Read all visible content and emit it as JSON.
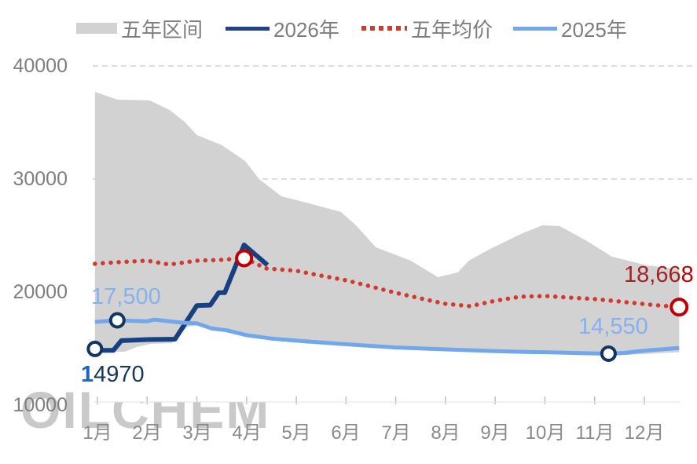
{
  "watermark": "OILCHEM",
  "legend": [
    {
      "label": "五年区间",
      "type": "band",
      "color": "#d2d2d2"
    },
    {
      "label": "2026年",
      "type": "line",
      "color": "#1e4388"
    },
    {
      "label": "五年均价",
      "type": "dotted",
      "color": "#d23a2e"
    },
    {
      "label": "2025年",
      "type": "line",
      "color": "#73a7ec"
    }
  ],
  "chart_data": {
    "type": "line",
    "title": "",
    "x_axis": {
      "tick_labels": [
        "1月",
        "2月",
        "3月",
        "4月",
        "5月",
        "6月",
        "7月",
        "8月",
        "9月",
        "10月",
        "11月",
        "12月"
      ],
      "range": [
        0.95,
        12.7
      ]
    },
    "y_axis": {
      "range": [
        10000,
        40000
      ],
      "tick_labels": [
        "40000",
        "30000",
        "20000",
        "10000"
      ],
      "tick_values": [
        40000,
        30000,
        20000,
        10000
      ],
      "gridline_values": [
        40000,
        30000
      ],
      "grid": "dashed"
    },
    "band": {
      "name": "五年区间",
      "color": "#d2d2d2",
      "upper": [
        [
          0.95,
          37710
        ],
        [
          1.4,
          37020
        ],
        [
          2.05,
          36950
        ],
        [
          2.45,
          36110
        ],
        [
          2.75,
          35070
        ],
        [
          3.0,
          33890
        ],
        [
          3.5,
          32990
        ],
        [
          3.97,
          31600
        ],
        [
          4.25,
          30000
        ],
        [
          4.7,
          28470
        ],
        [
          5.2,
          27920
        ],
        [
          5.9,
          27080
        ],
        [
          6.2,
          25900
        ],
        [
          6.6,
          23960
        ],
        [
          7.3,
          22780
        ],
        [
          7.85,
          21320
        ],
        [
          8.25,
          21740
        ],
        [
          8.47,
          22780
        ],
        [
          8.9,
          23820
        ],
        [
          9.55,
          25210
        ],
        [
          9.95,
          25900
        ],
        [
          10.3,
          25830
        ],
        [
          10.85,
          24510
        ],
        [
          11.35,
          23130
        ],
        [
          12.05,
          22360
        ],
        [
          12.7,
          22020
        ]
      ],
      "lower": [
        [
          0.95,
          14720
        ],
        [
          1.55,
          14720
        ],
        [
          1.8,
          15150
        ],
        [
          2.1,
          15430
        ],
        [
          2.5,
          15480
        ],
        [
          2.8,
          16900
        ],
        [
          3.05,
          17090
        ],
        [
          3.3,
          16700
        ],
        [
          4.0,
          16050
        ],
        [
          5.0,
          15580
        ],
        [
          6.0,
          15260
        ],
        [
          7.0,
          14980
        ],
        [
          8.0,
          14820
        ],
        [
          9.0,
          14660
        ],
        [
          10.0,
          14560
        ],
        [
          11.0,
          14400
        ],
        [
          11.4,
          14400
        ],
        [
          12.0,
          14520
        ],
        [
          12.7,
          14680
        ]
      ]
    },
    "series": [
      {
        "name": "2026年",
        "color": "#16407f",
        "style": "solid",
        "width": 6,
        "points": [
          [
            0.95,
            14970
          ],
          [
            1.12,
            14840
          ],
          [
            1.32,
            14840
          ],
          [
            1.48,
            15700
          ],
          [
            2.0,
            15800
          ],
          [
            2.56,
            15830
          ],
          [
            3.0,
            18800
          ],
          [
            3.27,
            18850
          ],
          [
            3.44,
            19950
          ],
          [
            3.56,
            19950
          ],
          [
            3.95,
            24170
          ],
          [
            4.42,
            22390
          ]
        ]
      },
      {
        "name": "五年均价",
        "color": "#d23a2e",
        "style": "dotted",
        "width": 5.5,
        "points": [
          [
            0.95,
            22500
          ],
          [
            1.4,
            22640
          ],
          [
            2.0,
            22780
          ],
          [
            2.45,
            22430
          ],
          [
            3.0,
            22780
          ],
          [
            3.5,
            22850
          ],
          [
            3.95,
            22990
          ],
          [
            4.4,
            22080
          ],
          [
            5.0,
            21880
          ],
          [
            5.4,
            21530
          ],
          [
            6.0,
            21040
          ],
          [
            6.5,
            20490
          ],
          [
            7.0,
            19930
          ],
          [
            7.5,
            19440
          ],
          [
            8.0,
            18960
          ],
          [
            8.5,
            18750
          ],
          [
            9.0,
            19230
          ],
          [
            9.5,
            19580
          ],
          [
            10.0,
            19650
          ],
          [
            10.5,
            19510
          ],
          [
            11.0,
            19380
          ],
          [
            11.5,
            19170
          ],
          [
            12.1,
            18890
          ],
          [
            12.7,
            18668
          ]
        ]
      },
      {
        "name": "2025年",
        "color": "#73a7ec",
        "style": "solid",
        "width": 5,
        "points": [
          [
            0.95,
            17360
          ],
          [
            1.4,
            17500
          ],
          [
            2.0,
            17420
          ],
          [
            2.15,
            17560
          ],
          [
            2.7,
            17290
          ],
          [
            3.0,
            17230
          ],
          [
            3.3,
            16780
          ],
          [
            3.6,
            16620
          ],
          [
            4.0,
            16190
          ],
          [
            4.5,
            15890
          ],
          [
            5.0,
            15700
          ],
          [
            6.0,
            15380
          ],
          [
            7.0,
            15100
          ],
          [
            8.0,
            14930
          ],
          [
            9.0,
            14780
          ],
          [
            9.6,
            14700
          ],
          [
            10.0,
            14680
          ],
          [
            10.8,
            14590
          ],
          [
            11.28,
            14550
          ],
          [
            11.6,
            14620
          ],
          [
            12.0,
            14820
          ],
          [
            12.7,
            15050
          ]
        ]
      }
    ],
    "markers": [
      {
        "series": "2026年",
        "x": 0.95,
        "value": 14970,
        "ring_color": "#14355f",
        "r": 8.5
      },
      {
        "series": "2025年",
        "x": 1.4,
        "value": 17500,
        "ring_color": "#14355f",
        "r": 8.5
      },
      {
        "series": "2025年",
        "x": 11.28,
        "value": 14550,
        "ring_color": "#14355f",
        "r": 8.5
      },
      {
        "series": "五年均价",
        "x": 3.95,
        "value": 22990,
        "ring_color": "#c00000",
        "r": 9.5
      },
      {
        "series": "五年均价",
        "x": 12.7,
        "value": 18668,
        "ring_color": "#c00000",
        "r": 10
      }
    ],
    "annotations": [
      {
        "text": "14970",
        "lead": "1",
        "rest": "4970",
        "series": "2026年",
        "value": 14970
      },
      {
        "text": "17,500",
        "series": "2025年",
        "value": 17500
      },
      {
        "text": "14,550",
        "series": "2025年",
        "value": 14550
      },
      {
        "text": "18,668",
        "head": "18,66",
        "tail": "8",
        "series": "五年均价",
        "value": 18668
      }
    ]
  }
}
